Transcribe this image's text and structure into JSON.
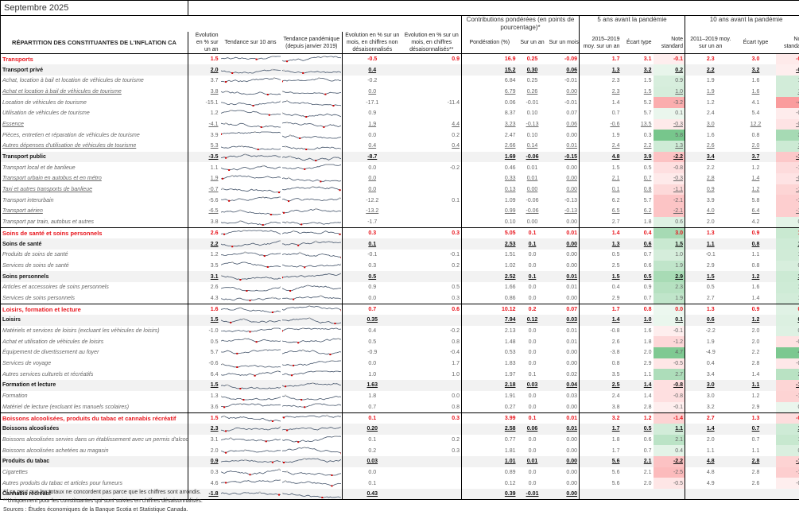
{
  "title": "Septembre 2025",
  "groups": {
    "contrib": "Contributions pondérées (en points de pourcentage)*",
    "five": "5 ans avant la pandémie",
    "ten": "10 ans avant la pandémie"
  },
  "headers": {
    "component": "RÉPARTITION DES CONSTITUANTES DE L'INFLATION CA",
    "yoy": "Évolution en % sur un an",
    "trend10": "Tendance sur 10 ans",
    "trendpan": "Tendance pandémique (depuis janvier 2019)",
    "mom_nsa": "Évolution en % sur un mois, en chiffres non désaisonnalisés",
    "mom_sa": "Évolution en % sur un mois, en chiffres désaisonnalisés**",
    "weight": "Pondération (%)",
    "c_yoy": "Sur un an",
    "c_mom": "Sur un mois",
    "avg5": "2015–2019 moy. sur un an",
    "sd5": "Écart type",
    "z5": "Note standard",
    "avg10": "2011–2019 moy. sur un an",
    "sd10": "Écart type",
    "z10": "Note standard"
  },
  "colors": {
    "category": "#e8141c",
    "subtotal_bg": "#f2f2f2",
    "spark_line": "#44546a",
    "spark_min": "#d00000",
    "spark_max": "#bfbfbf"
  },
  "rows": [
    {
      "t": "cat",
      "name": "Transports",
      "yoy": "1.5",
      "mnsa": "-0.5",
      "msa": "0.9",
      "w": "16.9",
      "cy": "0.25",
      "cm": "-0.09",
      "a5": "1.7",
      "s5": "3.1",
      "z5": "-0.1",
      "a10": "2.3",
      "s10": "3.0",
      "z10": "-0.3"
    },
    {
      "t": "sub",
      "name": "Transport privé",
      "yoy": "2.0",
      "mnsa": "0.4",
      "msa": "",
      "w": "15.2",
      "cy": "0.30",
      "cm": "0.06",
      "a5": "1.3",
      "s5": "3.2",
      "z5": "0.2",
      "a10": "2.2",
      "s10": "3.2",
      "z10": "-0.1"
    },
    {
      "t": "item",
      "name": "Achat, location à bail et location de véhicules de tourisme",
      "yoy": "3.7",
      "mnsa": "-0.2",
      "msa": "",
      "w": "6.84",
      "cy": "0.25",
      "cm": "-0.01",
      "a5": "2.3",
      "s5": "1.5",
      "z5": "0.9",
      "a10": "1.9",
      "s10": "1.6",
      "z10": "1.1"
    },
    {
      "t": "item u",
      "name": "Achat et location à bail de véhicules de tourisme",
      "yoy": "3.8",
      "mnsa": "0.0",
      "msa": "",
      "w": "6.79",
      "cy": "0.26",
      "cm": "0.00",
      "a5": "2.3",
      "s5": "1.5",
      "z5": "1.0",
      "a10": "1.9",
      "s10": "1.6",
      "z10": "1.1"
    },
    {
      "t": "item",
      "name": "Location de véhicules de tourisme",
      "yoy": "-15.1",
      "mnsa": "-17.1",
      "msa": "-11.4",
      "w": "0.06",
      "cy": "-0.01",
      "cm": "-0.01",
      "a5": "1.4",
      "s5": "5.2",
      "z5": "-3.2",
      "a10": "1.2",
      "s10": "4.1",
      "z10": "-4.0"
    },
    {
      "t": "item",
      "name": "Utilisation de véhicules de tourisme",
      "yoy": "1.2",
      "mnsa": "0.9",
      "msa": "",
      "w": "8.37",
      "cy": "0.10",
      "cm": "0.07",
      "a5": "0.7",
      "s5": "5.7",
      "z5": "0.1",
      "a10": "2.4",
      "s10": "5.4",
      "z10": "-0.2"
    },
    {
      "t": "item u",
      "name": "Essence",
      "yoy": "-4.1",
      "mnsa": "1.9",
      "msa": "4.4",
      "w": "3.23",
      "cy": "-0.13",
      "cm": "0.06",
      "a5": "-0.6",
      "s5": "13.5",
      "z5": "-0.3",
      "a10": "3.0",
      "s10": "12.2",
      "z10": "-0.6"
    },
    {
      "t": "item",
      "name": "Pièces, entretien et réparation de véhicules de tourisme",
      "yoy": "3.9",
      "mnsa": "0.0",
      "msa": "0.2",
      "w": "2.47",
      "cy": "0.10",
      "cm": "0.00",
      "a5": "1.9",
      "s5": "0.3",
      "z5": "5.8",
      "a10": "1.6",
      "s10": "0.8",
      "z10": "3.0"
    },
    {
      "t": "item u",
      "name": "Autres dépenses d'utilisation de véhicules de tourisme",
      "yoy": "5.3",
      "mnsa": "0.4",
      "msa": "0.4",
      "w": "2.66",
      "cy": "0.14",
      "cm": "0.01",
      "a5": "2.4",
      "s5": "2.2",
      "z5": "1.3",
      "a10": "2.6",
      "s10": "2.0",
      "z10": "1.4"
    },
    {
      "t": "sub",
      "name": "Transport public",
      "yoy": "-3.5",
      "mnsa": "-8.7",
      "msa": "",
      "w": "1.69",
      "cy": "-0.06",
      "cm": "-0.15",
      "a5": "4.8",
      "s5": "3.9",
      "z5": "-2.2",
      "a10": "3.4",
      "s10": "3.7",
      "z10": "-1.9"
    },
    {
      "t": "item",
      "name": "Transport local et de banlieue",
      "yoy": "1.1",
      "mnsa": "0.0",
      "msa": "-0.2",
      "w": "0.46",
      "cy": "0.01",
      "cm": "0.00",
      "a5": "1.5",
      "s5": "0.5",
      "z5": "-0.8",
      "a10": "2.2",
      "s10": "1.2",
      "z10": "-1.0"
    },
    {
      "t": "item u",
      "name": "Transport urbain en autobus et en métro",
      "yoy": "1.9",
      "mnsa": "0.0",
      "msa": "",
      "w": "0.33",
      "cy": "0.01",
      "cm": "0.00",
      "a5": "2.1",
      "s5": "0.7",
      "z5": "-0.3",
      "a10": "2.8",
      "s10": "1.4",
      "z10": "-0.6"
    },
    {
      "t": "item u",
      "name": "Taxi et autres transports de banlieue",
      "yoy": "-0.7",
      "mnsa": "0.0",
      "msa": "",
      "w": "0.13",
      "cy": "0.00",
      "cm": "0.00",
      "a5": "0.1",
      "s5": "0.8",
      "z5": "-1.1",
      "a10": "0.9",
      "s10": "1.2",
      "z10": "-1.3"
    },
    {
      "t": "item",
      "name": "Transport interurbain",
      "yoy": "-5.6",
      "mnsa": "-12.2",
      "msa": "0.1",
      "w": "1.09",
      "cy": "-0.06",
      "cm": "-0.13",
      "a5": "6.2",
      "s5": "5.7",
      "z5": "-2.1",
      "a10": "3.9",
      "s10": "5.8",
      "z10": "-1.6"
    },
    {
      "t": "item u",
      "name": "Transport aérien",
      "yoy": "-6.5",
      "mnsa": "-13.2",
      "msa": "",
      "w": "0.99",
      "cy": "-0.06",
      "cm": "-0.13",
      "a5": "6.5",
      "s5": "6.2",
      "z5": "-2.1",
      "a10": "4.0",
      "s10": "6.4",
      "z10": "-1.6"
    },
    {
      "t": "item it",
      "name": "Transport par train, autobus et autres",
      "yoy": "3.8",
      "mnsa": "-1.7",
      "msa": "",
      "w": "0.10",
      "cy": "0.00",
      "cm": "0.00",
      "a5": "2.7",
      "s5": "1.8",
      "z5": "0.6",
      "a10": "2.0",
      "s10": "4.2",
      "z10": "0.4"
    },
    {
      "t": "cat",
      "name": "Soins de santé et soins personnels",
      "yoy": "2.6",
      "mnsa": "0.3",
      "msa": "0.3",
      "w": "5.05",
      "cy": "0.1",
      "cm": "0.01",
      "a5": "1.4",
      "s5": "0.4",
      "z5": "3.0",
      "a10": "1.3",
      "s10": "0.9",
      "z10": "1.5"
    },
    {
      "t": "sub",
      "name": "Soins de santé",
      "yoy": "2.2",
      "mnsa": "0.1",
      "msa": "",
      "w": "2.53",
      "cy": "0.1",
      "cm": "0.00",
      "a5": "1.3",
      "s5": "0.6",
      "z5": "1.5",
      "a10": "1.1",
      "s10": "0.8",
      "z10": "1.3"
    },
    {
      "t": "item",
      "name": "Produits de soins de santé",
      "yoy": "1.2",
      "mnsa": "-0.1",
      "msa": "-0.1",
      "w": "1.51",
      "cy": "0.0",
      "cm": "0.00",
      "a5": "0.5",
      "s5": "0.7",
      "z5": "1.0",
      "a10": "-0.1",
      "s10": "1.1",
      "z10": "1.2"
    },
    {
      "t": "item",
      "name": "Services de soins de santé",
      "yoy": "3.5",
      "mnsa": "0.3",
      "msa": "0.2",
      "w": "1.02",
      "cy": "0.0",
      "cm": "0.00",
      "a5": "2.5",
      "s5": "0.6",
      "z5": "1.9",
      "a10": "2.9",
      "s10": "0.8",
      "z10": "0.9"
    },
    {
      "t": "sub",
      "name": "Soins personnels",
      "yoy": "3.1",
      "mnsa": "0.5",
      "msa": "",
      "w": "2.52",
      "cy": "0.1",
      "cm": "0.01",
      "a5": "1.5",
      "s5": "0.5",
      "z5": "2.9",
      "a10": "1.5",
      "s10": "1.2",
      "z10": "1.4"
    },
    {
      "t": "item",
      "name": "Articles et accessoires de soins personnels",
      "yoy": "2.6",
      "mnsa": "0.9",
      "msa": "0.5",
      "w": "1.66",
      "cy": "0.0",
      "cm": "0.01",
      "a5": "0.4",
      "s5": "0.9",
      "z5": "2.3",
      "a10": "0.5",
      "s10": "1.6",
      "z10": "1.3"
    },
    {
      "t": "item",
      "name": "Services de soins personnels",
      "yoy": "4.3",
      "mnsa": "0.0",
      "msa": "0.3",
      "w": "0.86",
      "cy": "0.0",
      "cm": "0.00",
      "a5": "2.9",
      "s5": "0.7",
      "z5": "1.9",
      "a10": "2.7",
      "s10": "1.4",
      "z10": "1.1"
    },
    {
      "t": "cat",
      "name": "Loisirs, formation et lecture",
      "yoy": "1.6",
      "mnsa": "0.7",
      "msa": "0.6",
      "w": "10.12",
      "cy": "0.2",
      "cm": "0.07",
      "a5": "1.7",
      "s5": "0.8",
      "z5": "0.0",
      "a10": "1.3",
      "s10": "0.9",
      "z10": "0.5"
    },
    {
      "t": "sub",
      "name": "Loisirs",
      "yoy": "1.5",
      "mnsa": "0.35",
      "msa": "",
      "w": "7.94",
      "cy": "0.12",
      "cm": "0.03",
      "a5": "1.4",
      "s5": "1.0",
      "z5": "0.1",
      "a10": "0.6",
      "s10": "1.2",
      "z10": "0.7"
    },
    {
      "t": "item",
      "name": "Matériels et services de loisirs (excluant les véhicules de loisirs)",
      "yoy": "-1.0",
      "mnsa": "0.4",
      "msa": "-0.2",
      "w": "2.13",
      "cy": "0.0",
      "cm": "0.01",
      "a5": "-0.8",
      "s5": "1.6",
      "z5": "-0.1",
      "a10": "-2.2",
      "s10": "2.0",
      "z10": "0.6"
    },
    {
      "t": "item",
      "name": "Achat et utilisation de véhicules de loisirs",
      "yoy": "0.5",
      "mnsa": "0.5",
      "msa": "0.8",
      "w": "1.48",
      "cy": "0.0",
      "cm": "0.01",
      "a5": "2.6",
      "s5": "1.8",
      "z5": "-1.2",
      "a10": "1.9",
      "s10": "2.0",
      "z10": "-0.7"
    },
    {
      "t": "item",
      "name": "Équipement de divertissement au foyer",
      "yoy": "5.7",
      "mnsa": "-0.9",
      "msa": "-0.4",
      "w": "0.53",
      "cy": "0.0",
      "cm": "0.00",
      "a5": "-3.8",
      "s5": "2.0",
      "z5": "4.7",
      "a10": "-4.9",
      "s10": "2.2",
      "z10": "4.8"
    },
    {
      "t": "item",
      "name": "Services de voyage",
      "yoy": "-0.6",
      "mnsa": "0.0",
      "msa": "1.7",
      "w": "1.83",
      "cy": "0.0",
      "cm": "0.00",
      "a5": "0.8",
      "s5": "2.9",
      "z5": "-0.5",
      "a10": "0.4",
      "s10": "2.8",
      "z10": "-0.4"
    },
    {
      "t": "item",
      "name": "Autres services culturels et récréatifs",
      "yoy": "6.4",
      "mnsa": "1.0",
      "msa": "1.0",
      "w": "1.97",
      "cy": "0.1",
      "cm": "0.02",
      "a5": "3.5",
      "s5": "1.1",
      "z5": "2.7",
      "a10": "3.4",
      "s10": "1.4",
      "z10": "2.2"
    },
    {
      "t": "sub",
      "name": "Formation et lecture",
      "yoy": "1.5",
      "mnsa": "1.63",
      "msa": "",
      "w": "2.18",
      "cy": "0.03",
      "cm": "0.04",
      "a5": "2.5",
      "s5": "1.4",
      "z5": "-0.8",
      "a10": "3.0",
      "s10": "1.1",
      "z10": "-1.3"
    },
    {
      "t": "item",
      "name": "Formation",
      "yoy": "1.3",
      "mnsa": "1.8",
      "msa": "0.0",
      "w": "1.91",
      "cy": "0.0",
      "cm": "0.03",
      "a5": "2.4",
      "s5": "1.4",
      "z5": "-0.8",
      "a10": "3.0",
      "s10": "1.2",
      "z10": "-1.4"
    },
    {
      "t": "item",
      "name": "Matériel de lecture (excluant les manuels scolaires)",
      "yoy": "3.6",
      "mnsa": "0.7",
      "msa": "0.8",
      "w": "0.27",
      "cy": "0.0",
      "cm": "0.00",
      "a5": "3.8",
      "s5": "2.8",
      "z5": "-0.1",
      "a10": "3.2",
      "s10": "2.9",
      "z10": "0.1"
    },
    {
      "t": "cat",
      "name": "Boissons alcoolisées, produits du tabac et cannabis récréatif",
      "yoy": "1.5",
      "mnsa": "0.1",
      "msa": "0.3",
      "w": "3.99",
      "cy": "0.1",
      "cm": "0.01",
      "a5": "3.2",
      "s5": "1.2",
      "z5": "-1.4",
      "a10": "2.7",
      "s10": "1.3",
      "z10": "-0.9"
    },
    {
      "t": "sub",
      "name": "Boissons alcoolisées",
      "yoy": "2.3",
      "mnsa": "0.20",
      "msa": "",
      "w": "2.58",
      "cy": "0.06",
      "cm": "0.01",
      "a5": "1.7",
      "s5": "0.5",
      "z5": "1.1",
      "a10": "1.4",
      "s10": "0.7",
      "z10": "1.3"
    },
    {
      "t": "item",
      "name": "Boissons alcoolisées servies dans un établissement avec un permis d'alcool",
      "yoy": "3.1",
      "mnsa": "0.1",
      "msa": "0.2",
      "w": "0.77",
      "cy": "0.0",
      "cm": "0.00",
      "a5": "1.8",
      "s5": "0.6",
      "z5": "2.1",
      "a10": "2.0",
      "s10": "0.7",
      "z10": "1.6"
    },
    {
      "t": "item",
      "name": "Boissons alcoolisées achetées au magasin",
      "yoy": "2.0",
      "mnsa": "0.2",
      "msa": "0.3",
      "w": "1.81",
      "cy": "0.0",
      "cm": "0.00",
      "a5": "1.7",
      "s5": "0.7",
      "z5": "0.4",
      "a10": "1.1",
      "s10": "1.1",
      "z10": "0.8"
    },
    {
      "t": "sub",
      "name": "Produits du tabac",
      "yoy": "0.9",
      "mnsa": "0.03",
      "msa": "",
      "w": "1.01",
      "cy": "0.01",
      "cm": "0.00",
      "a5": "5.6",
      "s5": "2.1",
      "z5": "-2.2",
      "a10": "4.8",
      "s10": "2.8",
      "z10": "-1.4"
    },
    {
      "t": "item",
      "name": "Cigarettes",
      "yoy": "0.3",
      "mnsa": "0.0",
      "msa": "",
      "w": "0.89",
      "cy": "0.0",
      "cm": "0.00",
      "a5": "5.6",
      "s5": "2.1",
      "z5": "-2.5",
      "a10": "4.8",
      "s10": "2.8",
      "z10": "-1.6"
    },
    {
      "t": "item",
      "name": "Autres produits du tabac et articles pour fumeurs",
      "yoy": "4.6",
      "mnsa": "0.1",
      "msa": "",
      "w": "0.12",
      "cy": "0.0",
      "cm": "0.00",
      "a5": "5.6",
      "s5": "2.0",
      "z5": "-0.5",
      "a10": "4.9",
      "s10": "2.6",
      "z10": "-0.1"
    },
    {
      "t": "sub",
      "name": "Cannabis récréatif",
      "yoy": "-1.8",
      "mnsa": "0.43",
      "msa": "",
      "w": "0.39",
      "cy": "-0.01",
      "cm": "0.00",
      "a5": "",
      "s5": "",
      "z5": "",
      "a10": "",
      "s10": "",
      "z10": ""
    }
  ],
  "footnotes": [
    "*Il se peut que les totaux ne concordent pas parce que les chiffres sont arrondis.",
    "**Uniquement pour les constituantes qui sont suivies en chiffres désaisonnalisés.",
    "Sources : Études économiques de la Banque Scotia et Statistique Canada."
  ]
}
